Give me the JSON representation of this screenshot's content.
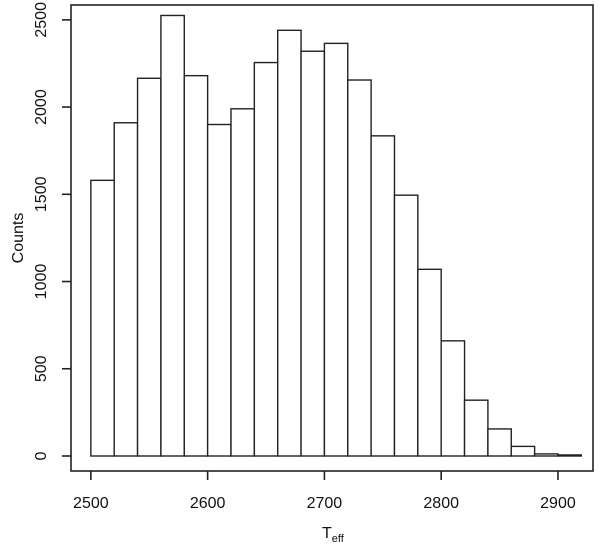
{
  "figure": {
    "background": "#ffffff",
    "line_color": "#222222"
  },
  "chart_data": {
    "type": "bar",
    "subtype": "histogram",
    "title": "",
    "xlabel": "T",
    "xlabel_subscript": "eff",
    "ylabel": "Counts",
    "bin_start": 2500,
    "bin_width": 20,
    "categories": [
      2500,
      2520,
      2540,
      2560,
      2580,
      2600,
      2620,
      2640,
      2660,
      2680,
      2700,
      2720,
      2740,
      2760,
      2780,
      2800,
      2820,
      2840,
      2860,
      2880,
      2900
    ],
    "values": [
      1580,
      1910,
      2165,
      2525,
      2180,
      1900,
      1990,
      2255,
      2440,
      2320,
      2365,
      2155,
      1835,
      1495,
      1070,
      660,
      320,
      155,
      55,
      12,
      6
    ],
    "x_ticks": [
      2500,
      2600,
      2700,
      2800,
      2900
    ],
    "y_ticks": [
      0,
      500,
      1000,
      1500,
      2000,
      2500
    ],
    "xlim": [
      2483,
      2930
    ],
    "ylim": [
      -86,
      2585
    ],
    "bar_fill": "#ffffff",
    "bar_stroke": "#222222",
    "grid": false,
    "legend": null
  }
}
